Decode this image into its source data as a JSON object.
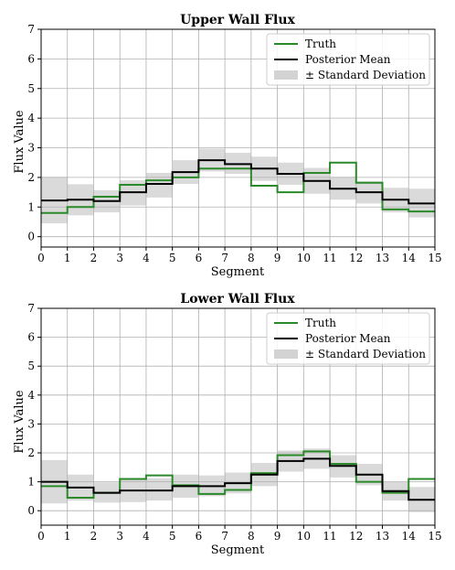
{
  "chart_data": [
    {
      "type": "line",
      "step": true,
      "title": "Upper Wall Flux",
      "xlabel": "Segment",
      "ylabel": "Flux Value",
      "xlim": [
        0,
        15
      ],
      "ylim": [
        -0.35,
        7
      ],
      "xticks": [
        0,
        1,
        2,
        3,
        4,
        5,
        6,
        7,
        8,
        9,
        10,
        11,
        12,
        13,
        14,
        15
      ],
      "yticks": [
        0,
        1,
        2,
        3,
        4,
        5,
        6,
        7
      ],
      "grid": true,
      "legend_position": "top-right",
      "legend": [
        "Truth",
        "Posterior Mean",
        "± Standard Deviation"
      ],
      "x": [
        0,
        1,
        2,
        3,
        4,
        5,
        6,
        7,
        8,
        9,
        10,
        11,
        12,
        13,
        14
      ],
      "series": [
        {
          "name": "Truth",
          "color": "#2a8a2a",
          "values": [
            0.8,
            1.0,
            1.35,
            1.75,
            1.9,
            2.0,
            2.3,
            2.3,
            1.72,
            1.5,
            2.15,
            2.5,
            1.82,
            0.92,
            0.85
          ]
        },
        {
          "name": "Posterior Mean",
          "color": "#000000",
          "values": [
            1.22,
            1.25,
            1.2,
            1.5,
            1.78,
            2.18,
            2.58,
            2.45,
            2.3,
            2.12,
            1.88,
            1.62,
            1.5,
            1.25,
            1.12
          ]
        }
      ],
      "band": {
        "name": "± Standard Deviation",
        "color": "#d3d3d3",
        "lower": [
          0.45,
          0.72,
          0.82,
          1.05,
          1.32,
          1.78,
          2.2,
          2.12,
          1.88,
          1.75,
          1.45,
          1.25,
          1.12,
          0.82,
          0.65
        ],
        "upper": [
          2.02,
          1.77,
          1.57,
          1.9,
          2.15,
          2.58,
          2.97,
          2.83,
          2.7,
          2.5,
          2.32,
          2.02,
          1.87,
          1.65,
          1.62
        ]
      }
    },
    {
      "type": "line",
      "step": true,
      "title": "Lower Wall Flux",
      "xlabel": "Segment",
      "ylabel": "Flux Value",
      "xlim": [
        0,
        15
      ],
      "ylim": [
        -0.5,
        7
      ],
      "xticks": [
        0,
        1,
        2,
        3,
        4,
        5,
        6,
        7,
        8,
        9,
        10,
        11,
        12,
        13,
        14,
        15
      ],
      "yticks": [
        0,
        1,
        2,
        3,
        4,
        5,
        6,
        7
      ],
      "grid": true,
      "legend_position": "top-right",
      "legend": [
        "Truth",
        "Posterior Mean",
        "± Standard Deviation"
      ],
      "x": [
        0,
        1,
        2,
        3,
        4,
        5,
        6,
        7,
        8,
        9,
        10,
        11,
        12,
        13,
        14
      ],
      "series": [
        {
          "name": "Truth",
          "color": "#2a8a2a",
          "values": [
            0.85,
            0.45,
            0.62,
            1.1,
            1.22,
            0.88,
            0.58,
            0.72,
            1.3,
            1.92,
            2.05,
            1.62,
            1.0,
            0.62,
            1.1
          ]
        },
        {
          "name": "Posterior Mean",
          "color": "#000000",
          "values": [
            1.0,
            0.8,
            0.62,
            0.7,
            0.7,
            0.85,
            0.85,
            0.95,
            1.25,
            1.72,
            1.8,
            1.55,
            1.25,
            0.68,
            0.38
          ]
        }
      ],
      "band": {
        "name": "± Standard Deviation",
        "color": "#d3d3d3",
        "lower": [
          0.25,
          0.35,
          0.28,
          0.3,
          0.35,
          0.45,
          0.5,
          0.6,
          0.85,
          1.35,
          1.45,
          1.15,
          0.88,
          0.35,
          -0.05
        ],
        "upper": [
          1.75,
          1.25,
          0.98,
          1.1,
          1.12,
          1.25,
          1.22,
          1.32,
          1.65,
          2.08,
          2.15,
          1.92,
          1.62,
          1.0,
          0.82
        ]
      }
    }
  ]
}
